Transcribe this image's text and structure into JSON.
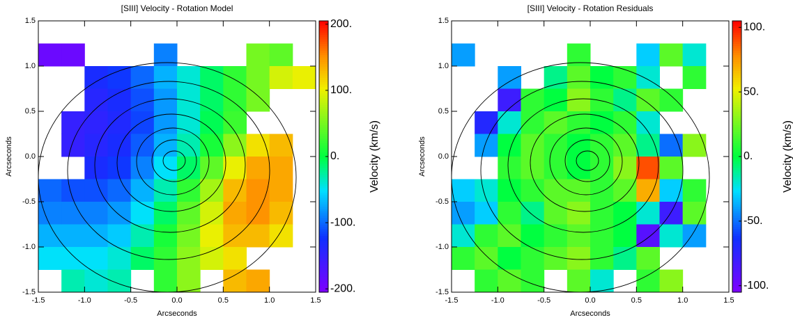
{
  "chart_data": [
    {
      "type": "heatmap",
      "title": "[SIII] Velocity - Rotation Model",
      "xlabel": "Arcseconds",
      "ylabel": "Arcseconds",
      "colorbar_label": "Velocity (km/s)",
      "xlim": [
        -1.5,
        1.5
      ],
      "ylim": [
        -1.5,
        1.5
      ],
      "xticks": [
        -1.5,
        {
          "value": -1,
          "label": "-1.0"
        },
        -0.5,
        {
          "value": 0,
          "label": "0.0"
        },
        0.5,
        {
          "value": 1,
          "label": "1.0"
        },
        1.5
      ],
      "yticks": [
        -1.5,
        {
          "value": -1,
          "label": "-1.0"
        },
        -0.5,
        {
          "value": 0,
          "label": "0.0"
        },
        0.5,
        {
          "value": 1,
          "label": "1.0"
        },
        1.5
      ],
      "clim": [
        -205,
        205
      ],
      "cticks": [
        {
          "value": -200,
          "label": "-200."
        },
        {
          "value": -100,
          "label": "-100."
        },
        {
          "value": 0,
          "label": "0."
        },
        {
          "value": 100,
          "label": "100."
        },
        {
          "value": 200,
          "label": "200."
        }
      ],
      "x": [
        -1.375,
        -1.125,
        -0.875,
        -0.625,
        -0.375,
        -0.125,
        0.125,
        0.375,
        0.625,
        0.875,
        1.125,
        1.375
      ],
      "y": [
        1.375,
        1.125,
        0.875,
        0.625,
        0.375,
        0.125,
        -0.125,
        -0.375,
        -0.625,
        -0.875,
        -1.125,
        -1.375
      ],
      "z": [
        [
          null,
          null,
          null,
          null,
          null,
          null,
          null,
          null,
          null,
          null,
          null,
          null
        ],
        [
          -190,
          -190,
          null,
          null,
          null,
          -90,
          null,
          null,
          null,
          50,
          40,
          null
        ],
        [
          null,
          null,
          -130,
          -120,
          -100,
          -70,
          -40,
          -10,
          20,
          50,
          90,
          100
        ],
        [
          null,
          null,
          -140,
          -130,
          -110,
          -80,
          -40,
          -10,
          20,
          50,
          null,
          null
        ],
        [
          null,
          -150,
          -145,
          -135,
          -115,
          -80,
          -40,
          -5,
          25,
          null,
          null,
          null
        ],
        [
          null,
          -150,
          -140,
          -130,
          -105,
          -70,
          -30,
          10,
          60,
          110,
          130,
          null
        ],
        [
          null,
          null,
          -130,
          -120,
          -90,
          -50,
          -10,
          40,
          100,
          140,
          140,
          null
        ],
        [
          -100,
          -110,
          -110,
          -100,
          -70,
          -30,
          20,
          70,
          130,
          150,
          140,
          null
        ],
        [
          -90,
          -90,
          -90,
          -80,
          -50,
          -10,
          40,
          90,
          140,
          150,
          130,
          null
        ],
        [
          -70,
          -70,
          -70,
          -60,
          -30,
          10,
          50,
          100,
          130,
          130,
          110,
          null
        ],
        [
          -50,
          -50,
          -50,
          -40,
          -10,
          20,
          60,
          90,
          110,
          null,
          null,
          null
        ],
        [
          null,
          -30,
          -40,
          -30,
          null,
          20,
          60,
          null,
          130,
          140,
          null,
          null
        ]
      ]
    },
    {
      "type": "heatmap",
      "title": "[SIII] Velocity - Rotation Residuals",
      "xlabel": "Arcseconds",
      "ylabel": "Arcseconds",
      "colorbar_label": "Velocity (km/s)",
      "xlim": [
        -1.5,
        1.5
      ],
      "ylim": [
        -1.5,
        1.5
      ],
      "xticks": [
        -1.5,
        {
          "value": -1,
          "label": "-1.0"
        },
        -0.5,
        {
          "value": 0,
          "label": "0.0"
        },
        0.5,
        {
          "value": 1,
          "label": "1.0"
        },
        1.5
      ],
      "yticks": [
        -1.5,
        {
          "value": -1,
          "label": "-1.0"
        },
        -0.5,
        {
          "value": 0,
          "label": "0.0"
        },
        0.5,
        {
          "value": 1,
          "label": "1.0"
        },
        1.5
      ],
      "clim": [
        -105,
        105
      ],
      "cticks": [
        {
          "value": -100,
          "label": "-100."
        },
        {
          "value": -50,
          "label": "-50."
        },
        {
          "value": 0,
          "label": "0."
        },
        {
          "value": 50,
          "label": "50."
        },
        {
          "value": 100,
          "label": "100."
        }
      ],
      "x": [
        -1.375,
        -1.125,
        -0.875,
        -0.625,
        -0.375,
        -0.125,
        0.125,
        0.375,
        0.625,
        0.875,
        1.125,
        1.375
      ],
      "y": [
        1.375,
        1.125,
        0.875,
        0.625,
        0.375,
        0.125,
        -0.125,
        -0.375,
        -0.625,
        -0.875,
        -1.125,
        -1.375
      ],
      "z": [
        [
          null,
          null,
          null,
          null,
          null,
          null,
          null,
          null,
          null,
          null,
          null,
          null
        ],
        [
          -40,
          null,
          null,
          null,
          null,
          10,
          null,
          null,
          -30,
          20,
          -20,
          null
        ],
        [
          null,
          null,
          -40,
          null,
          -10,
          20,
          0,
          10,
          -20,
          null,
          10,
          null
        ],
        [
          null,
          null,
          -80,
          10,
          0,
          30,
          10,
          -10,
          20,
          10,
          null,
          null
        ],
        [
          null,
          -70,
          -20,
          10,
          20,
          10,
          0,
          10,
          -20,
          null,
          null,
          null
        ],
        [
          null,
          -40,
          0,
          20,
          10,
          0,
          10,
          20,
          -10,
          -50,
          30,
          null
        ],
        [
          null,
          null,
          10,
          20,
          10,
          0,
          10,
          30,
          90,
          20,
          null,
          null
        ],
        [
          -30,
          -20,
          0,
          10,
          20,
          20,
          10,
          20,
          70,
          -30,
          10,
          null
        ],
        [
          -40,
          -30,
          10,
          -10,
          20,
          30,
          10,
          0,
          -20,
          -80,
          20,
          null
        ],
        [
          -20,
          10,
          20,
          0,
          10,
          20,
          10,
          0,
          -90,
          -20,
          -40,
          null
        ],
        [
          10,
          20,
          0,
          10,
          20,
          30,
          10,
          -10,
          20,
          null,
          null,
          null
        ],
        [
          null,
          10,
          20,
          10,
          null,
          20,
          -20,
          null,
          10,
          30,
          null,
          null
        ]
      ]
    }
  ]
}
